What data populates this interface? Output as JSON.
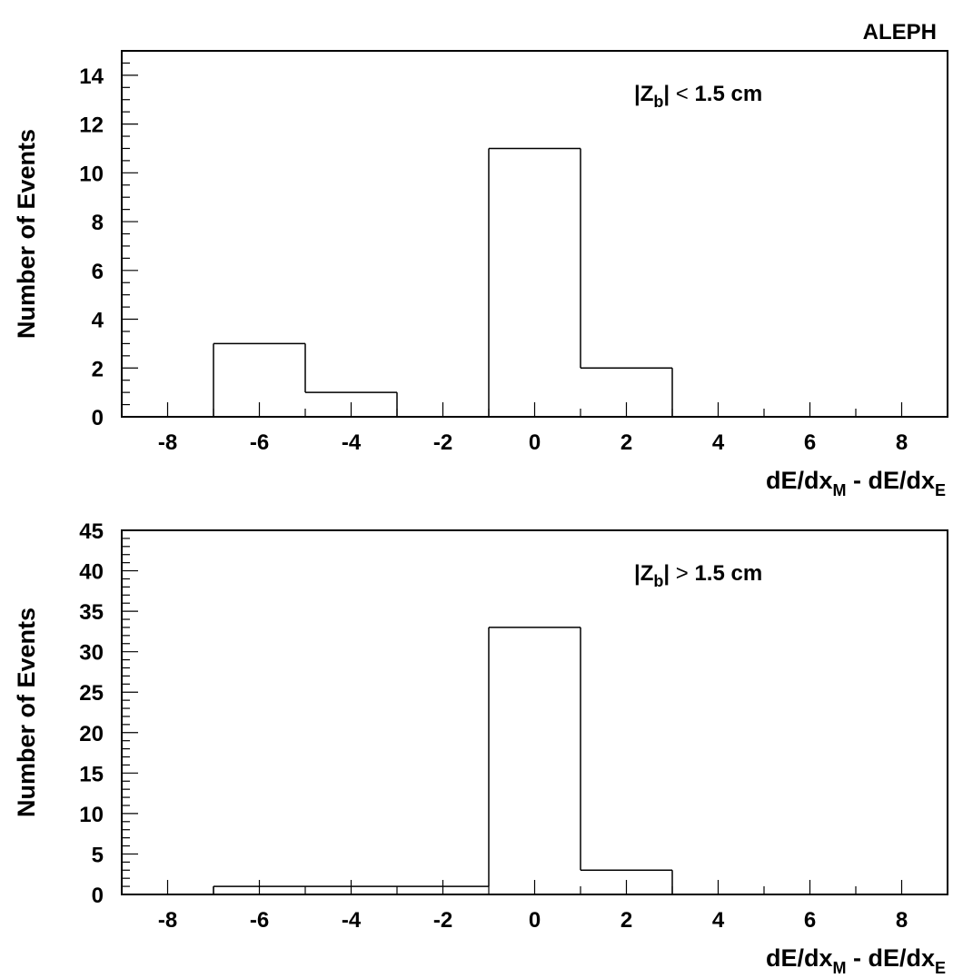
{
  "experiment_label": "ALEPH",
  "chart_data": [
    {
      "type": "bar",
      "histogram": true,
      "ylabel": "Number of Events",
      "xlabel": {
        "main": "dE/dx",
        "sub1": "M",
        "sep": " - dE/dx",
        "sub2": "E"
      },
      "annotation": {
        "pre": "|Z",
        "sub": "b",
        "post": "| ",
        "op": "<",
        "value": " 1.5 cm"
      },
      "xlim": [
        -9,
        9
      ],
      "ylim": [
        0,
        15
      ],
      "x_ticks": [
        -8,
        -6,
        -4,
        -2,
        0,
        2,
        4,
        6,
        8
      ],
      "y_ticks": [
        0,
        2,
        4,
        6,
        8,
        10,
        12,
        14
      ],
      "bin_edges": [
        -9,
        -7,
        -5,
        -3,
        -1,
        1,
        3,
        5,
        7,
        9
      ],
      "values": [
        0,
        3,
        1,
        0,
        11,
        2,
        0,
        0,
        0
      ],
      "grid": false
    },
    {
      "type": "bar",
      "histogram": true,
      "ylabel": "Number of Events",
      "xlabel": {
        "main": "dE/dx",
        "sub1": "M",
        "sep": " - dE/dx",
        "sub2": "E"
      },
      "annotation": {
        "pre": "|Z",
        "sub": "b",
        "post": "|  ",
        "op": ">",
        "value": " 1.5 cm"
      },
      "xlim": [
        -9,
        9
      ],
      "ylim": [
        0,
        45
      ],
      "x_ticks": [
        -8,
        -6,
        -4,
        -2,
        0,
        2,
        4,
        6,
        8
      ],
      "y_ticks": [
        0,
        5,
        10,
        15,
        20,
        25,
        30,
        35,
        40,
        45
      ],
      "bin_edges": [
        -9,
        -7,
        -5,
        -3,
        -1,
        1,
        3,
        5,
        7,
        9
      ],
      "values": [
        0,
        1,
        1,
        1,
        33,
        3,
        0,
        0,
        0
      ],
      "grid": false
    }
  ]
}
